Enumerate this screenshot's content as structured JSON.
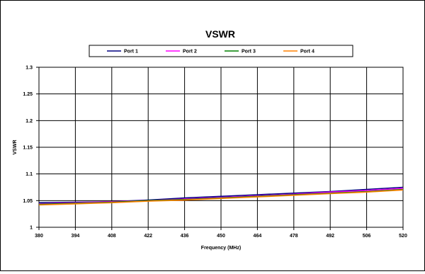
{
  "chart_data": {
    "type": "line",
    "title": "VSWR",
    "xlabel": "Frequency (MHz)",
    "ylabel": "VSWR",
    "xlim": [
      380,
      520
    ],
    "ylim": [
      1,
      1.3
    ],
    "xticks": [
      380,
      394,
      408,
      422,
      436,
      450,
      464,
      478,
      492,
      506,
      520
    ],
    "yticks": [
      1,
      1.05,
      1.1,
      1.15,
      1.2,
      1.25,
      1.3
    ],
    "grid": true,
    "legend_position": "top",
    "x": [
      380,
      394,
      408,
      422,
      436,
      450,
      464,
      478,
      492,
      506,
      520
    ],
    "series": [
      {
        "name": "Port 1",
        "color": "#000080",
        "values": [
          1.046,
          1.047,
          1.048,
          1.051,
          1.055,
          1.058,
          1.061,
          1.064,
          1.067,
          1.071,
          1.075
        ]
      },
      {
        "name": "Port 2",
        "color": "#ff00ff",
        "values": [
          1.044,
          1.046,
          1.048,
          1.05,
          1.053,
          1.056,
          1.059,
          1.062,
          1.066,
          1.069,
          1.073
        ]
      },
      {
        "name": "Port 3",
        "color": "#008000",
        "values": [
          1.043,
          1.045,
          1.047,
          1.05,
          1.052,
          1.055,
          1.058,
          1.061,
          1.064,
          1.067,
          1.071
        ]
      },
      {
        "name": "Port 4",
        "color": "#ff8000",
        "values": [
          1.042,
          1.044,
          1.046,
          1.049,
          1.051,
          1.054,
          1.057,
          1.06,
          1.063,
          1.066,
          1.07
        ]
      }
    ]
  }
}
